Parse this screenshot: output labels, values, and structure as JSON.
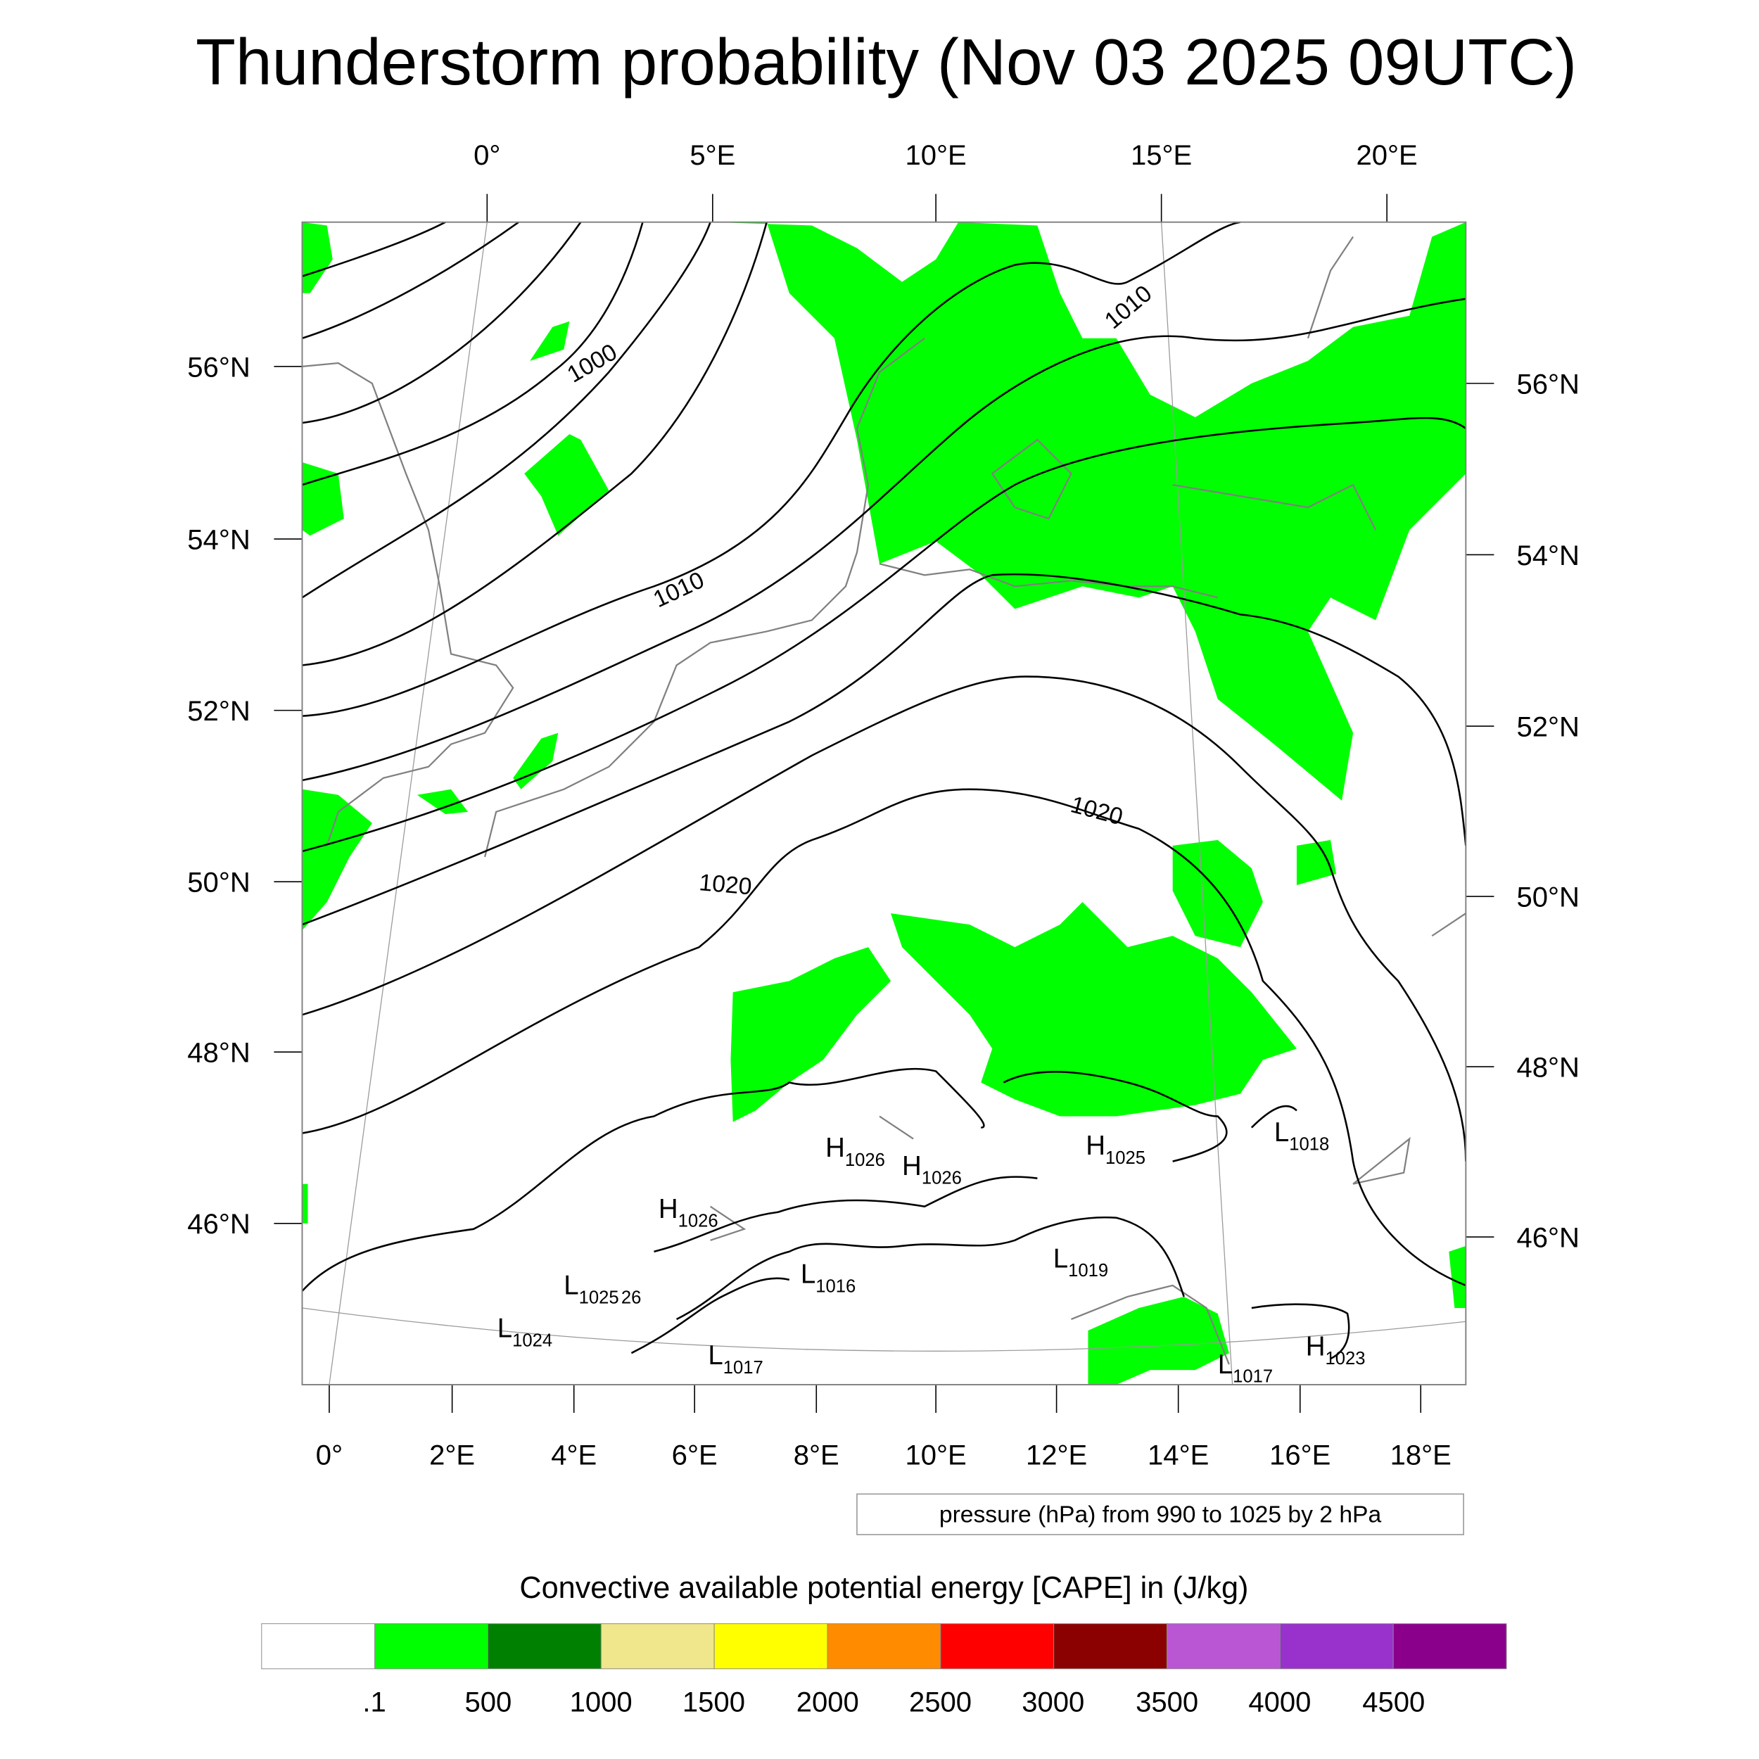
{
  "title": "Thunderstorm probability (Nov 03 2025 09UTC)",
  "top_lon_labels": [
    "0°",
    "5°E",
    "10°E",
    "15°E",
    "20°E"
  ],
  "bottom_lon_labels": [
    "0°",
    "2°E",
    "4°E",
    "6°E",
    "8°E",
    "10°E",
    "12°E",
    "14°E",
    "16°E",
    "18°E"
  ],
  "left_lat_labels": [
    "56°N",
    "54°N",
    "52°N",
    "50°N",
    "48°N",
    "46°N"
  ],
  "right_lat_labels": [
    "56°N",
    "54°N",
    "52°N",
    "50°N",
    "48°N",
    "46°N"
  ],
  "contour_labels": [
    "1000",
    "1010",
    "1010",
    "1020",
    "1020"
  ],
  "pressure_centers": [
    {
      "type": "H",
      "value": "1026"
    },
    {
      "type": "H",
      "value": "1026"
    },
    {
      "type": "H",
      "value": "1026"
    },
    {
      "type": "H",
      "value": "1025"
    },
    {
      "type": "L",
      "value": "1018"
    },
    {
      "type": "L",
      "value": "1025"
    },
    {
      "type": "L",
      "value": "1016"
    },
    {
      "type": "L",
      "value": "1019"
    },
    {
      "type": "L",
      "value": "1024"
    },
    {
      "type": "L",
      "value": "1017"
    },
    {
      "type": "L",
      "value": "1017"
    },
    {
      "type": "H",
      "value": "1023"
    }
  ],
  "pressure_fragment": "26",
  "contour_info": "pressure (hPa) from 990 to 1025 by 2 hPa",
  "colorbar": {
    "title": "Convective available potential energy [CAPE] in (J/kg)",
    "colors": [
      "#ffffff",
      "#00ff00",
      "#008000",
      "#f0e68c",
      "#ffff00",
      "#ff8c00",
      "#ff0000",
      "#8b0000",
      "#ba55d3",
      "#9932cc",
      "#8b008b"
    ],
    "labels": [
      ".1",
      "500",
      "1000",
      "1500",
      "2000",
      "2500",
      "3000",
      "3500",
      "4000",
      "4500"
    ]
  }
}
